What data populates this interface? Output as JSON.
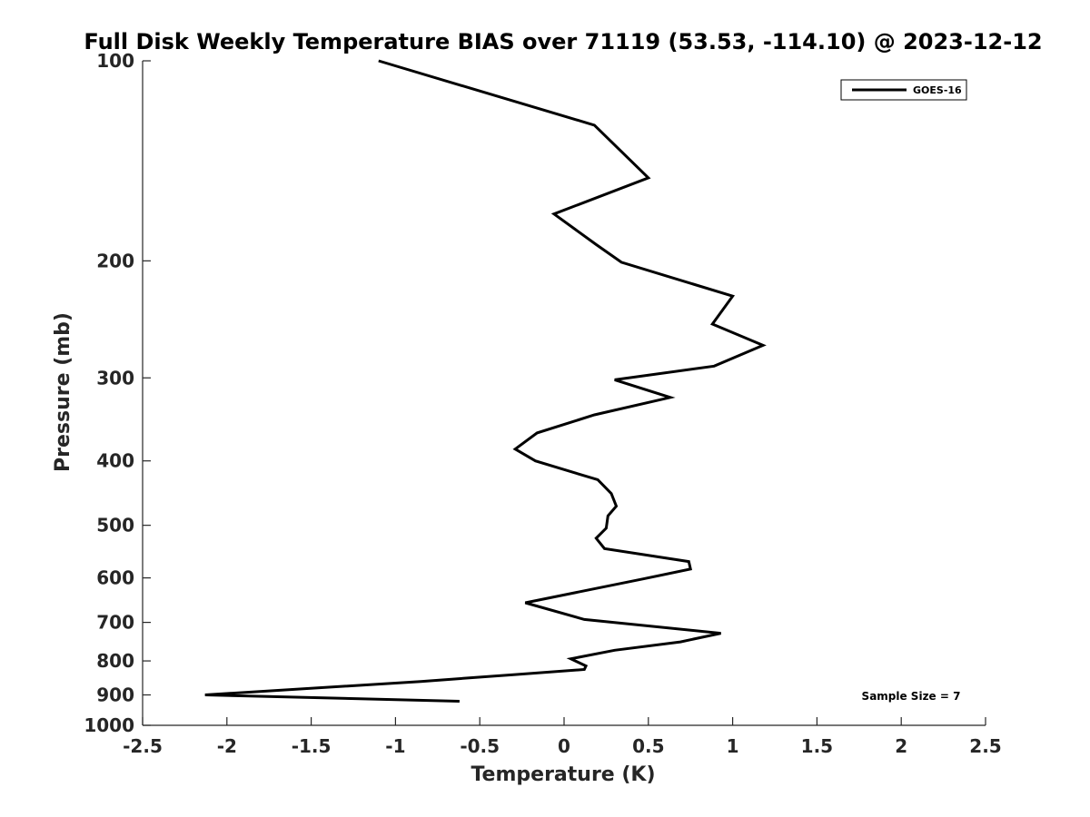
{
  "chart_data": {
    "type": "line",
    "title": "Full Disk Weekly Temperature BIAS over 71119 (53.53, -114.10) @ 2023-12-12",
    "xlabel": "Temperature (K)",
    "ylabel": "Pressure (mb)",
    "xlim": [
      -2.5,
      2.5
    ],
    "ylim": [
      1000,
      100
    ],
    "y_scale": "log",
    "y_reversed": true,
    "x_ticks": [
      "-2.5",
      "-2",
      "-1.5",
      "-1",
      "-0.5",
      "0",
      "0.5",
      "1",
      "1.5",
      "2",
      "2.5"
    ],
    "x_tick_values": [
      -2.5,
      -2,
      -1.5,
      -1,
      -0.5,
      0,
      0.5,
      1,
      1.5,
      2,
      2.5
    ],
    "y_ticks": [
      "100",
      "200",
      "300",
      "400",
      "500",
      "600",
      "700",
      "800",
      "900",
      "1000"
    ],
    "y_tick_values": [
      100,
      200,
      300,
      400,
      500,
      600,
      700,
      800,
      900,
      1000
    ],
    "grid": false,
    "legend_position": "top-right",
    "annotation": "Sample Size = 7",
    "series": [
      {
        "name": "GOES-16",
        "color": "#000000",
        "points": [
          {
            "x": -1.1,
            "p": 100
          },
          {
            "x": 0.18,
            "p": 125
          },
          {
            "x": 0.5,
            "p": 150
          },
          {
            "x": -0.06,
            "p": 170
          },
          {
            "x": 0.19,
            "p": 189
          },
          {
            "x": 0.34,
            "p": 201
          },
          {
            "x": 1.0,
            "p": 226
          },
          {
            "x": 0.88,
            "p": 249
          },
          {
            "x": 1.18,
            "p": 268
          },
          {
            "x": 0.89,
            "p": 288
          },
          {
            "x": 0.3,
            "p": 302
          },
          {
            "x": 0.63,
            "p": 321
          },
          {
            "x": 0.18,
            "p": 341
          },
          {
            "x": -0.16,
            "p": 363
          },
          {
            "x": -0.29,
            "p": 384
          },
          {
            "x": -0.17,
            "p": 400
          },
          {
            "x": 0.2,
            "p": 427
          },
          {
            "x": 0.28,
            "p": 448
          },
          {
            "x": 0.31,
            "p": 468
          },
          {
            "x": 0.26,
            "p": 484
          },
          {
            "x": 0.25,
            "p": 505
          },
          {
            "x": 0.19,
            "p": 523
          },
          {
            "x": 0.24,
            "p": 542
          },
          {
            "x": 0.74,
            "p": 567
          },
          {
            "x": 0.75,
            "p": 582
          },
          {
            "x": 0.47,
            "p": 602
          },
          {
            "x": -0.23,
            "p": 654
          },
          {
            "x": 0.12,
            "p": 693
          },
          {
            "x": 0.93,
            "p": 727
          },
          {
            "x": 0.69,
            "p": 749
          },
          {
            "x": 0.3,
            "p": 771
          },
          {
            "x": 0.04,
            "p": 794
          },
          {
            "x": 0.13,
            "p": 814
          },
          {
            "x": 0.12,
            "p": 824
          },
          {
            "x": -0.3,
            "p": 839
          },
          {
            "x": -0.85,
            "p": 859
          },
          {
            "x": -2.13,
            "p": 900
          },
          {
            "x": -0.62,
            "p": 920
          }
        ]
      }
    ]
  }
}
